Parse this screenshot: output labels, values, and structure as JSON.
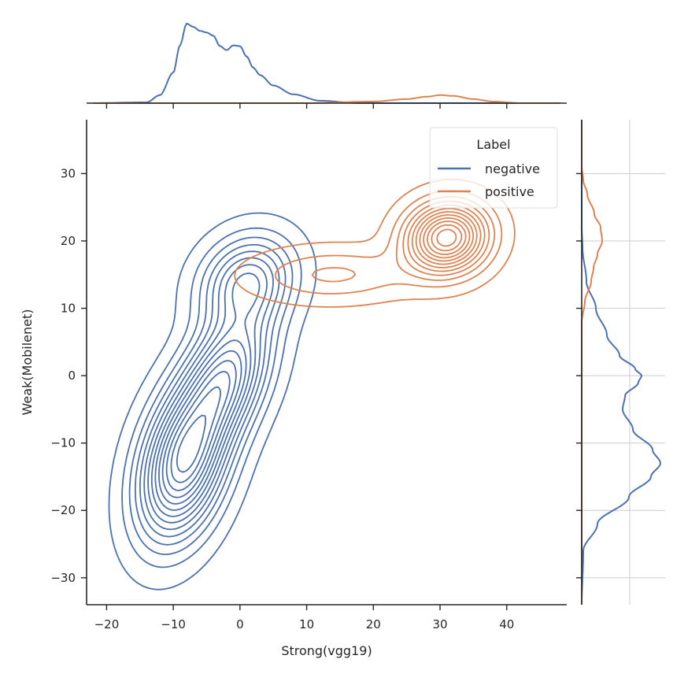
{
  "chart_data": {
    "type": "kde_jointplot",
    "xlabel": "Strong(vgg19)",
    "ylabel": "Weak(Mobilenet)",
    "xlim": [
      -23,
      49
    ],
    "ylim": [
      -34,
      38
    ],
    "xticks": [
      -20,
      -10,
      0,
      10,
      20,
      30,
      40
    ],
    "xtick_labels": [
      "−20",
      "−10",
      "0",
      "10",
      "20",
      "30",
      "40"
    ],
    "yticks": [
      -30,
      -20,
      -10,
      0,
      10,
      20,
      30
    ],
    "ytick_labels": [
      "−30",
      "−20",
      "−10",
      "0",
      "10",
      "20",
      "30"
    ],
    "legend": {
      "title": "Label",
      "placement": "top-right",
      "entries": [
        {
          "label": "negative",
          "color": "#4c72b0"
        },
        {
          "label": "positive",
          "color": "#dd8452"
        }
      ]
    },
    "colors": {
      "negative": "#4c72b0",
      "positive": "#dd8452",
      "axis": "#262626",
      "grid": "#cccccc"
    },
    "series": [
      {
        "name": "negative",
        "joint_modes": [
          {
            "x": -8.5,
            "y": -13,
            "sx": 4.2,
            "sy": 7.5,
            "rot": 0.22,
            "w": 1.0
          },
          {
            "x": -2.0,
            "y": 0,
            "sx": 4.0,
            "sy": 6.5,
            "rot": 0.3,
            "w": 0.75
          },
          {
            "x": 1.0,
            "y": 14,
            "sx": 4.5,
            "sy": 4.5,
            "rot": 0.2,
            "w": 0.55
          }
        ],
        "contour_levels": 14,
        "marginal_x": [
          [
            -22,
            0.0
          ],
          [
            -14,
            0.01
          ],
          [
            -12,
            0.1
          ],
          [
            -10,
            0.38
          ],
          [
            -9,
            0.72
          ],
          [
            -8,
            0.99
          ],
          [
            -7,
            0.95
          ],
          [
            -6,
            0.9
          ],
          [
            -5,
            0.88
          ],
          [
            -4,
            0.84
          ],
          [
            -3,
            0.71
          ],
          [
            -2,
            0.66
          ],
          [
            -1,
            0.72
          ],
          [
            0,
            0.71
          ],
          [
            1,
            0.58
          ],
          [
            2,
            0.44
          ],
          [
            3,
            0.35
          ],
          [
            5,
            0.22
          ],
          [
            8,
            0.11
          ],
          [
            12,
            0.03
          ],
          [
            18,
            0.0
          ],
          [
            48,
            0.0
          ]
        ],
        "marginal_y": [
          [
            -34,
            0.0
          ],
          [
            -26,
            0.02
          ],
          [
            -22,
            0.2
          ],
          [
            -18,
            0.6
          ],
          [
            -15,
            0.88
          ],
          [
            -13,
            1.0
          ],
          [
            -11,
            0.9
          ],
          [
            -8,
            0.65
          ],
          [
            -5,
            0.52
          ],
          [
            -3,
            0.55
          ],
          [
            -1,
            0.72
          ],
          [
            0,
            0.76
          ],
          [
            1,
            0.68
          ],
          [
            3,
            0.48
          ],
          [
            6,
            0.32
          ],
          [
            10,
            0.18
          ],
          [
            14,
            0.06
          ],
          [
            19,
            0.01
          ],
          [
            22,
            0.0
          ],
          [
            38,
            0.0
          ]
        ]
      },
      {
        "name": "positive",
        "joint_modes": [
          {
            "x": 31,
            "y": 20.5,
            "sx": 4.0,
            "sy": 3.4,
            "rot": 0.1,
            "w": 1.0
          },
          {
            "x": 14,
            "y": 15,
            "sx": 8.0,
            "sy": 2.6,
            "rot": 0.12,
            "w": 0.22
          }
        ],
        "contour_levels": 12,
        "marginal_x": [
          [
            -22,
            0.0
          ],
          [
            10,
            0.0
          ],
          [
            20,
            0.02
          ],
          [
            25,
            0.05
          ],
          [
            28,
            0.08
          ],
          [
            30,
            0.1
          ],
          [
            32,
            0.09
          ],
          [
            35,
            0.05
          ],
          [
            38,
            0.02
          ],
          [
            42,
            0.0
          ],
          [
            48,
            0.0
          ]
        ],
        "marginal_y": [
          [
            -34,
            0.0
          ],
          [
            8,
            0.0
          ],
          [
            11,
            0.04
          ],
          [
            14,
            0.12
          ],
          [
            16,
            0.15
          ],
          [
            18,
            0.2
          ],
          [
            20,
            0.26
          ],
          [
            22,
            0.24
          ],
          [
            24,
            0.16
          ],
          [
            27,
            0.07
          ],
          [
            29,
            0.02
          ],
          [
            31,
            0.0
          ],
          [
            38,
            0.0
          ]
        ]
      }
    ]
  }
}
